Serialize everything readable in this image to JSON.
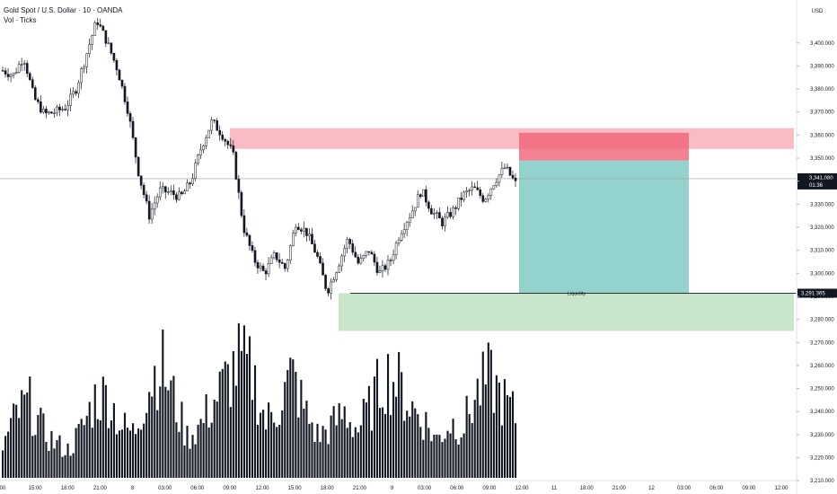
{
  "header": {
    "symbol_title": "Gold Spot / U.S. Dollar · 10 · OANDA",
    "volume_label": "Vol · Ticks"
  },
  "currency": "USD",
  "colors": {
    "up": "#26a69a",
    "candle": "#131722",
    "volume": "#131722",
    "supply_zone": "#f7a6b0",
    "demand_zone": "#a5d6a7",
    "target_zone": "#4db6ac",
    "stop_zone": "#f06277",
    "price_line": "#9e9e9e"
  },
  "chart_data": {
    "type": "candlestick",
    "y_axis": {
      "min": 3205,
      "max": 3412,
      "ticks": [
        "3,400.000",
        "3,390.000",
        "3,380.000",
        "3,370.000",
        "3,360.000",
        "3,350.000",
        "3,340.000",
        "3,330.000",
        "3,320.000",
        "3,310.000",
        "3,300.000",
        "3,290.000",
        "3,280.000",
        "3,270.000",
        "3,260.000",
        "3,250.000",
        "3,240.000",
        "3,230.000",
        "3,220.000",
        "3,210.000"
      ],
      "tick_values": [
        3400,
        3390,
        3380,
        3370,
        3360,
        3350,
        3340,
        3330,
        3320,
        3310,
        3300,
        3290,
        3280,
        3270,
        3260,
        3250,
        3240,
        3230,
        3220,
        3210
      ]
    },
    "x_axis": {
      "ticks": [
        "00",
        "15:00",
        "18:00",
        "21:00",
        "8",
        "03:00",
        "06:00",
        "09:00",
        "12:00",
        "15:00",
        "18:00",
        "21:00",
        "9",
        "03:00",
        "06:00",
        "09:00",
        "12:00",
        "11",
        "18:00",
        "21:00",
        "12",
        "03:00",
        "06:00",
        "09:00",
        "12:00"
      ]
    },
    "price_path": [
      3388,
      3386,
      3394,
      3376,
      3369,
      3370,
      3372,
      3380,
      3395,
      3410,
      3400,
      3388,
      3370,
      3343,
      3325,
      3336,
      3335,
      3333,
      3340,
      3355,
      3366,
      3360,
      3352,
      3320,
      3306,
      3300,
      3308,
      3302,
      3322,
      3318,
      3308,
      3292,
      3303,
      3315,
      3304,
      3310,
      3300,
      3305,
      3318,
      3326,
      3336,
      3327,
      3322,
      3327,
      3334,
      3337,
      3332,
      3340,
      3346,
      3339
    ],
    "volume_path": [
      45,
      90,
      110,
      70,
      50,
      40,
      70,
      115,
      120,
      75,
      65,
      130,
      170,
      115,
      60,
      75,
      110,
      140,
      170,
      150,
      80,
      105,
      150,
      95,
      60,
      75,
      95,
      70,
      105,
      150,
      140,
      105,
      85,
      55,
      80,
      75,
      120,
      145,
      115,
      90
    ],
    "current_price": {
      "value": 3341.08,
      "label": "3,341.080",
      "countdown": "01:36"
    },
    "liquidity": {
      "value": 3291.365,
      "label": "3,291.365",
      "text": "Liquidity"
    },
    "zones": {
      "supply": {
        "top": 3363,
        "bottom": 3354
      },
      "demand": {
        "top": 3291.365,
        "bottom": 3275
      },
      "position_stop": {
        "top": 3361,
        "bottom": 3349
      },
      "position_target": {
        "top": 3349,
        "bottom": 3291.365
      }
    }
  }
}
